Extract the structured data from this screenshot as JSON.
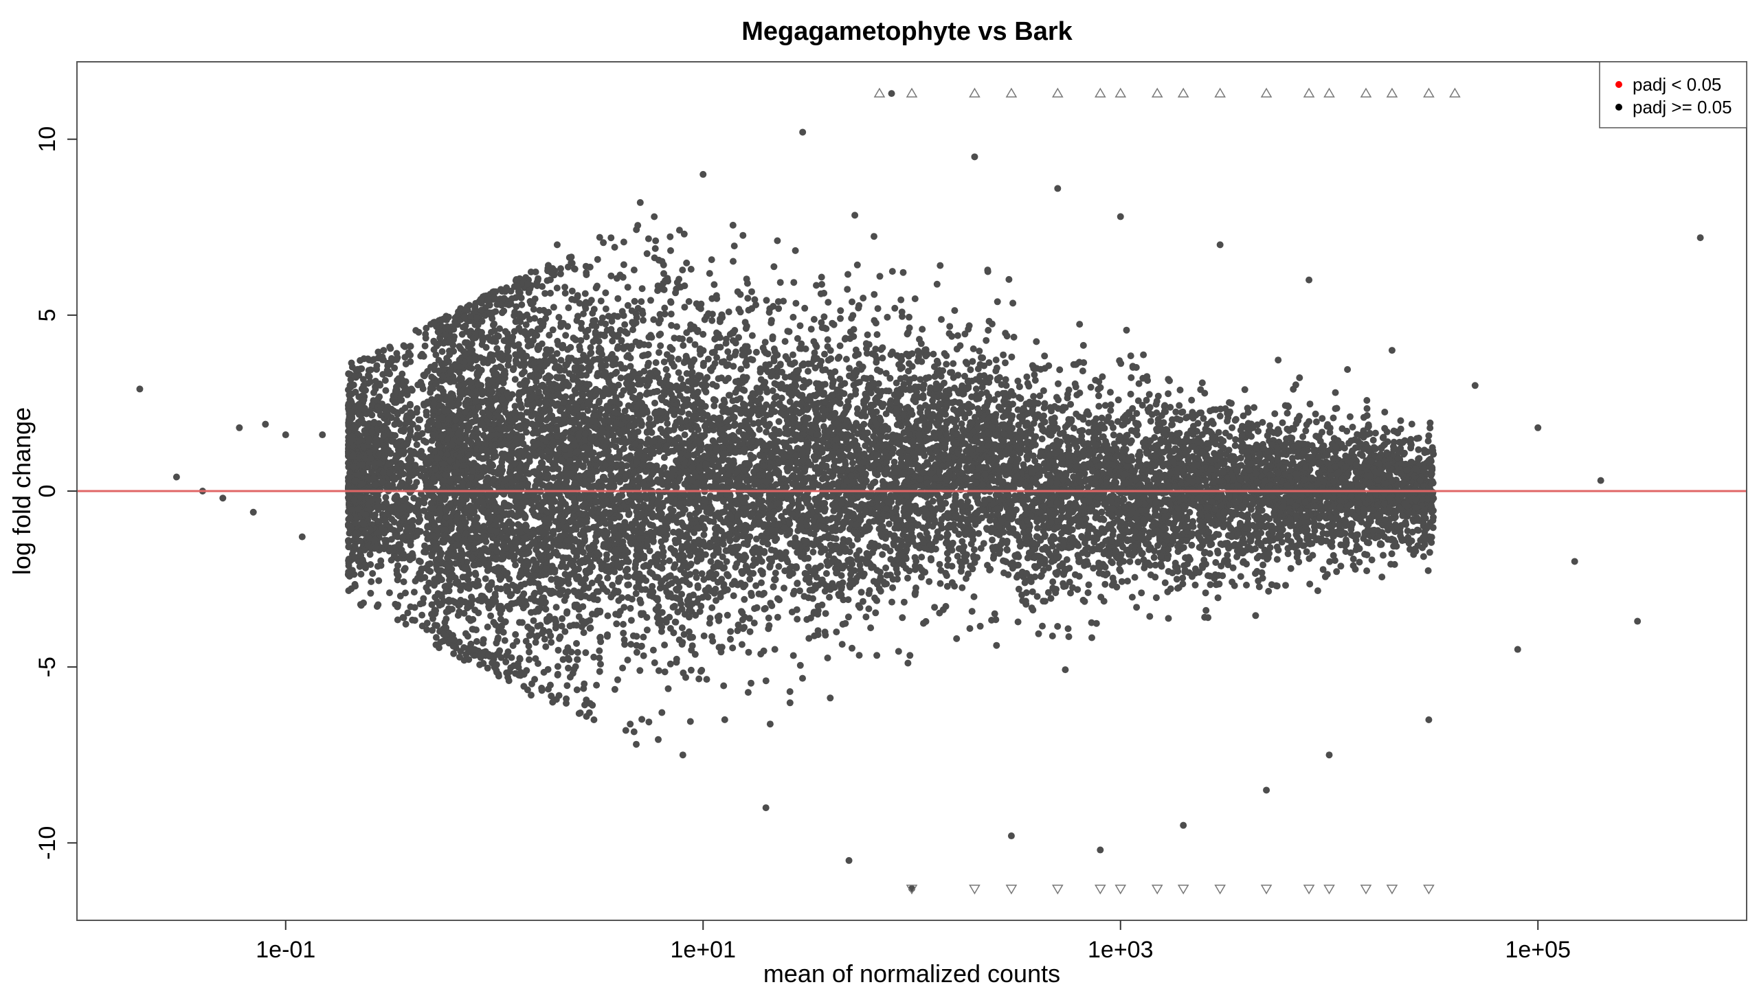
{
  "chart_data": {
    "type": "scatter",
    "title": "Megagametophyte vs Bark",
    "xlabel": "mean of normalized counts",
    "ylabel": "log fold change",
    "x_scale": "log10",
    "xlim": [
      0.01,
      1000000
    ],
    "ylim": [
      -12.2,
      12.2
    ],
    "x_ticks": [
      {
        "value": 0.1,
        "label": "1e-01"
      },
      {
        "value": 10,
        "label": "1e+01"
      },
      {
        "value": 1000,
        "label": "1e+03"
      },
      {
        "value": 100000,
        "label": "1e+05"
      }
    ],
    "y_ticks": [
      {
        "value": -10,
        "label": "-10"
      },
      {
        "value": -5,
        "label": "-5"
      },
      {
        "value": 0,
        "label": "0"
      },
      {
        "value": 5,
        "label": "5"
      },
      {
        "value": 10,
        "label": "10"
      }
    ],
    "reference_line": {
      "y": 0,
      "color": "#e06666"
    },
    "point_color": "#4d4d4d",
    "clip_limit": 11.3,
    "legend": {
      "placement": "top-right",
      "entries": [
        {
          "label": "padj < 0.05",
          "color": "#ff0000"
        },
        {
          "label": "padj >= 0.05",
          "color": "#000000"
        }
      ]
    },
    "series": [
      {
        "shape": "circle",
        "description_envelope": "dense cloud; upper bound ~ 11.3 clipped, widening with count",
        "x": [
          0.02,
          0.03,
          0.04,
          0.05,
          0.06,
          0.07,
          0.08,
          0.1,
          0.12,
          0.15,
          0.2,
          0.3,
          0.4,
          0.5,
          0.6,
          0.8,
          1,
          1.5,
          2,
          3,
          5,
          8,
          10,
          20,
          30,
          50,
          80,
          100,
          200,
          300,
          500,
          800,
          1000,
          2000,
          3000,
          5000,
          8000,
          10000,
          20000,
          30000,
          50000,
          80000,
          100000,
          150000,
          200000,
          300000,
          600000
        ],
        "y": [
          2.9,
          0.4,
          0.0,
          -0.2,
          1.8,
          -0.6,
          1.9,
          1.6,
          -1.3,
          1.6,
          -2.3,
          -0.8,
          2.9,
          -3.5,
          4.6,
          -4.5,
          5.5,
          -5.8,
          7.0,
          -6.5,
          8.2,
          -7.5,
          9.0,
          -9.0,
          10.2,
          -10.5,
          11.3,
          -11.3,
          9.5,
          -9.8,
          8.6,
          -10.2,
          7.8,
          -9.5,
          7.0,
          -8.5,
          6.0,
          -7.5,
          4.0,
          -6.5,
          3.0,
          -4.5,
          1.8,
          -2.0,
          0.3,
          -3.7,
          7.2
        ]
      },
      {
        "shape": "triangle-up",
        "description": "clipped at upper limit",
        "x": [
          70,
          100,
          200,
          300,
          500,
          800,
          1000,
          1500,
          2000,
          3000,
          5000,
          8000,
          10000,
          15000,
          20000,
          30000,
          40000
        ],
        "y": [
          11.3,
          11.3,
          11.3,
          11.3,
          11.3,
          11.3,
          11.3,
          11.3,
          11.3,
          11.3,
          11.3,
          11.3,
          11.3,
          11.3,
          11.3,
          11.3,
          11.3
        ]
      },
      {
        "shape": "triangle-down",
        "description": "clipped at lower limit",
        "x": [
          100,
          200,
          300,
          500,
          800,
          1000,
          1500,
          2000,
          3000,
          5000,
          8000,
          10000,
          15000,
          20000,
          30000
        ],
        "y": [
          -11.3,
          -11.3,
          -11.3,
          -11.3,
          -11.3,
          -11.3,
          -11.3,
          -11.3,
          -11.3,
          -11.3,
          -11.3,
          -11.3,
          -11.3,
          -11.3,
          -11.3
        ]
      }
    ]
  }
}
